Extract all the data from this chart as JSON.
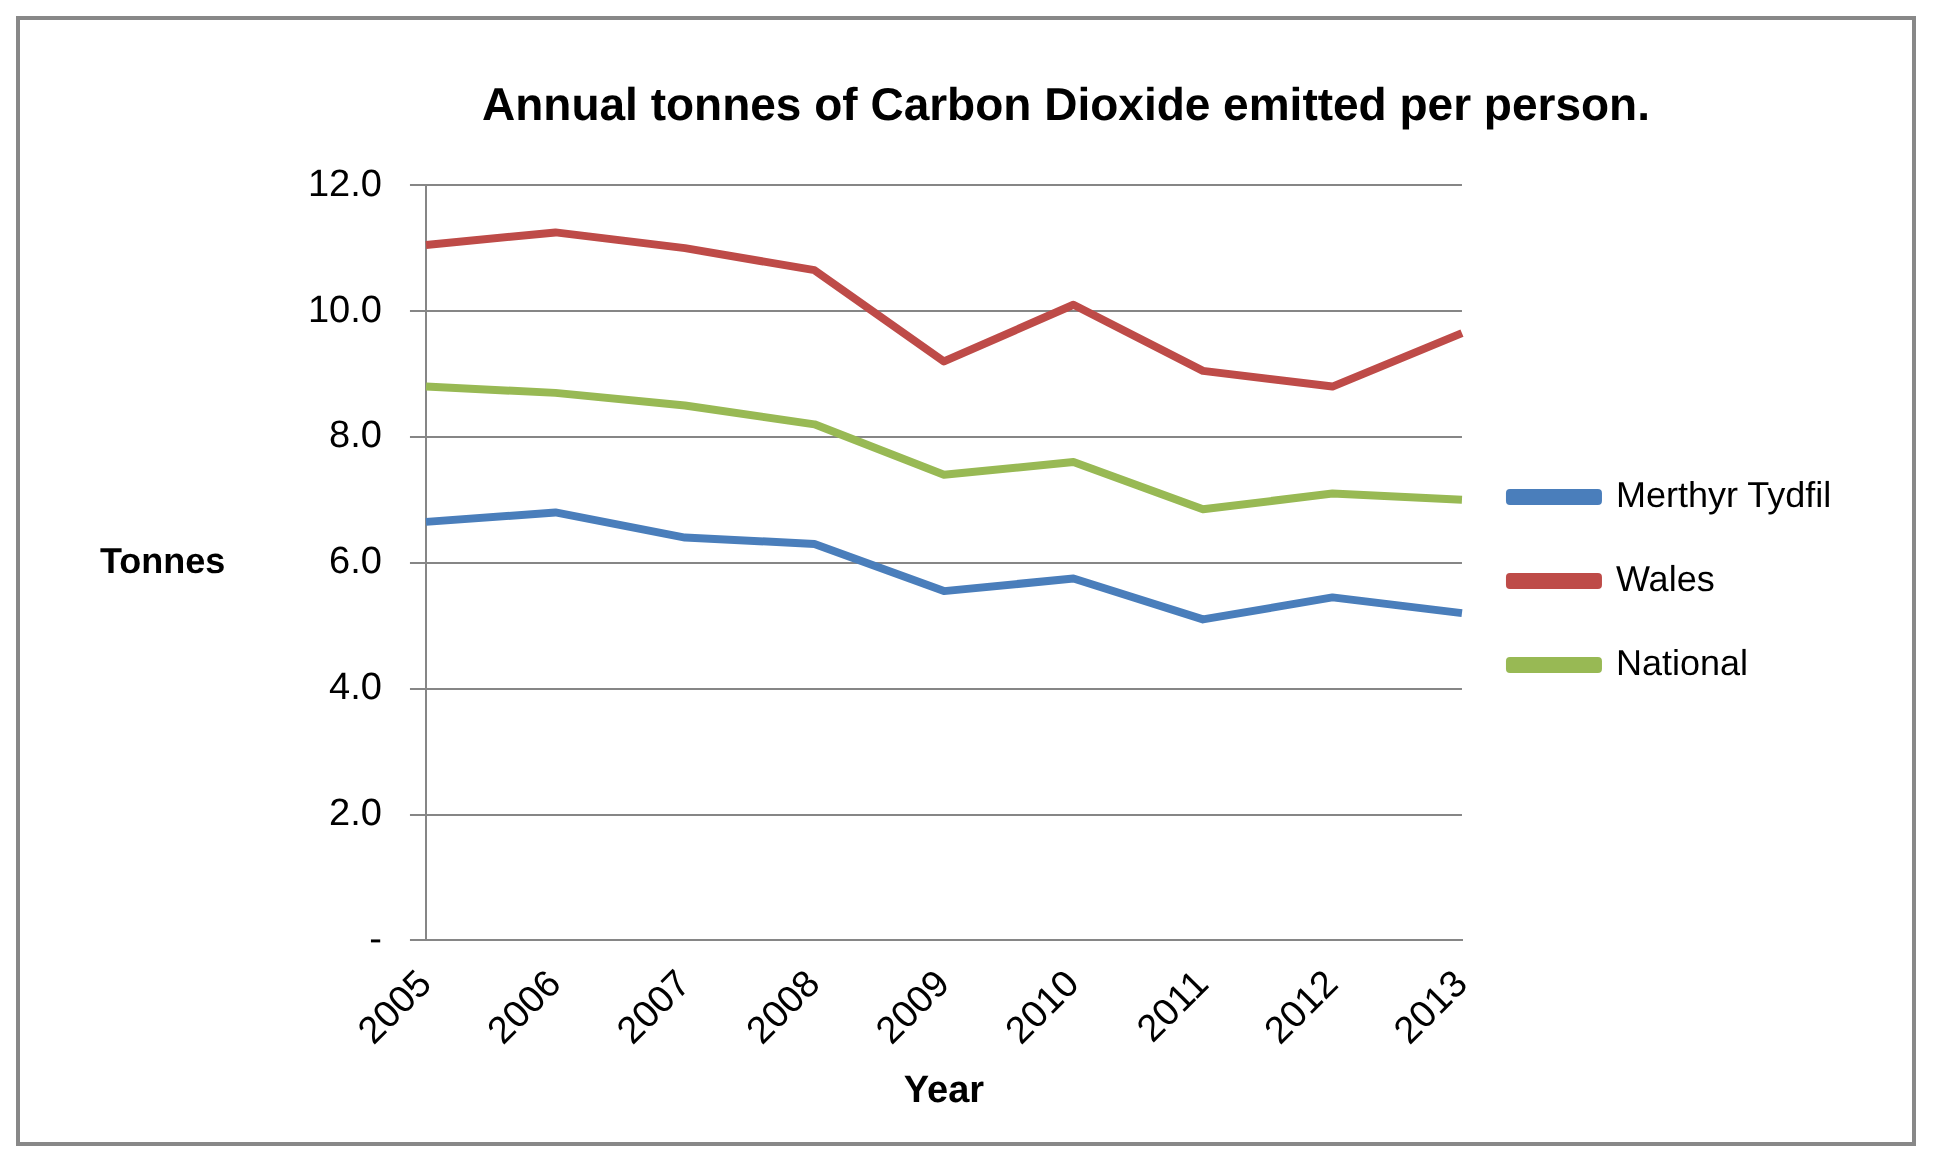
{
  "chart_data": {
    "type": "line",
    "title": "Annual tonnes of Carbon Dioxide emitted per person.",
    "xlabel": "Year",
    "ylabel": "Tonnes",
    "categories": [
      "2005",
      "2006",
      "2007",
      "2008",
      "2009",
      "2010",
      "2011",
      "2012",
      "2013"
    ],
    "series": [
      {
        "name": "Merthyr Tydfil",
        "color": "#4a7ebb",
        "values": [
          6.65,
          6.8,
          6.4,
          6.3,
          5.55,
          5.75,
          5.1,
          5.45,
          5.2
        ]
      },
      {
        "name": "Wales",
        "color": "#be4b48",
        "values": [
          11.05,
          11.25,
          11.0,
          10.65,
          9.2,
          10.1,
          9.05,
          8.8,
          9.65
        ]
      },
      {
        "name": "National",
        "color": "#98b954",
        "values": [
          8.8,
          8.7,
          8.5,
          8.2,
          7.4,
          7.6,
          6.85,
          7.1,
          7.0
        ]
      }
    ],
    "ylim": [
      0,
      12
    ],
    "yticks": [
      {
        "value": 0,
        "label": "-"
      },
      {
        "value": 2,
        "label": "2.0"
      },
      {
        "value": 4,
        "label": "4.0"
      },
      {
        "value": 6,
        "label": "6.0"
      },
      {
        "value": 8,
        "label": "8.0"
      },
      {
        "value": 10,
        "label": "10.0"
      },
      {
        "value": 12,
        "label": "12.0"
      }
    ],
    "grid": "y",
    "legend": "right",
    "marker": "none",
    "line_style": "solid"
  }
}
